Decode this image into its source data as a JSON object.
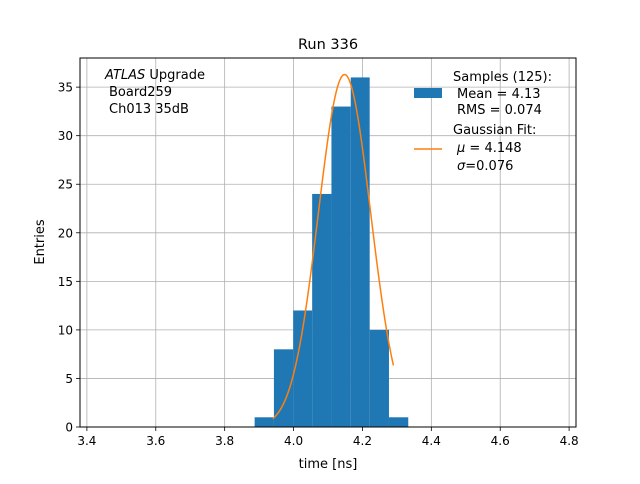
{
  "chart_data": {
    "type": "bar",
    "title": "Run 336",
    "xlabel": "time [ns]",
    "ylabel": "Entries",
    "xlim": [
      3.38,
      4.82
    ],
    "ylim": [
      0,
      38
    ],
    "x_ticks": [
      "3.4",
      "3.6",
      "3.8",
      "4.0",
      "4.2",
      "4.4",
      "4.6",
      "4.8"
    ],
    "x_tick_values": [
      3.4,
      3.6,
      3.8,
      4.0,
      4.2,
      4.4,
      4.6,
      4.8
    ],
    "y_ticks": [
      "0",
      "5",
      "10",
      "15",
      "20",
      "25",
      "30",
      "35"
    ],
    "y_tick_values": [
      0,
      5,
      10,
      15,
      20,
      25,
      30,
      35
    ],
    "grid": true,
    "annotation": {
      "italic": "ATLAS",
      "line1_rest": " Upgrade",
      "line2": "Board259",
      "line3": "Ch013 35dB"
    },
    "legend": {
      "placement": "top-right",
      "samples_title": "Samples (125):",
      "samples_mean": "Mean = 4.13",
      "samples_rms": "RMS = 0.074",
      "fit_title": "Gaussian Fit:",
      "fit_mu_symbol": "μ",
      "fit_mu_rest": " = 4.148",
      "fit_sigma_symbol": "σ",
      "fit_sigma_rest": "=0.076"
    },
    "series": [
      {
        "name": "Samples (125):",
        "type": "histogram",
        "color": "#1f77b4",
        "bins": [
          {
            "x0": 3.887,
            "x1": 3.943,
            "count": 1
          },
          {
            "x0": 3.943,
            "x1": 3.999,
            "count": 8
          },
          {
            "x0": 3.999,
            "x1": 4.054,
            "count": 12
          },
          {
            "x0": 4.054,
            "x1": 4.11,
            "count": 24
          },
          {
            "x0": 4.11,
            "x1": 4.166,
            "count": 33
          },
          {
            "x0": 4.166,
            "x1": 4.221,
            "count": 36
          },
          {
            "x0": 4.221,
            "x1": 4.277,
            "count": 10
          },
          {
            "x0": 4.277,
            "x1": 4.333,
            "count": 1
          }
        ]
      },
      {
        "name": "Gaussian Fit:",
        "type": "line",
        "color": "#ff7f0e",
        "gaussian": {
          "amplitude": 36.3,
          "mu": 4.148,
          "sigma": 0.076
        },
        "x_range": [
          3.94,
          4.29
        ]
      }
    ]
  }
}
